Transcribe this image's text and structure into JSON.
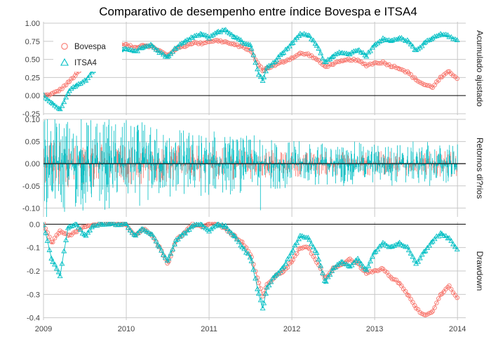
{
  "chart_data": {
    "type": "line",
    "title": "Comparativo de desempenho entre índice Bovespa e ITSA4",
    "x_ticks": [
      "2009",
      "2010",
      "2011",
      "2012",
      "2013",
      "2014"
    ],
    "x_range": [
      2009.0,
      2014.1
    ],
    "legend": {
      "placement": "top-left",
      "entries": [
        "Bovespa",
        "ITSA4"
      ]
    },
    "colors": {
      "Bovespa": "#F8766D",
      "ITSA4": "#00BFC4",
      "grid": "#c8c8c8"
    },
    "panels": [
      {
        "strip": "Acumulado ajustado",
        "ylim": [
          -0.27,
          1.02
        ],
        "y_ticks": [
          "1.00",
          "0.75",
          "0.50",
          "0.25",
          "0.00",
          "-0.25"
        ],
        "y_tick_values": [
          1.0,
          0.75,
          0.5,
          0.25,
          0.0,
          -0.25
        ],
        "series": [
          {
            "name": "Bovespa",
            "x": [
              2009.0,
              2009.1,
              2009.2,
              2009.3,
              2009.4,
              2009.5,
              2009.6,
              2009.7,
              2009.8,
              2009.9,
              2010.0,
              2010.1,
              2010.2,
              2010.3,
              2010.4,
              2010.5,
              2010.6,
              2010.7,
              2010.8,
              2010.9,
              2011.0,
              2011.1,
              2011.2,
              2011.3,
              2011.4,
              2011.5,
              2011.6,
              2011.65,
              2011.7,
              2011.8,
              2011.9,
              2012.0,
              2012.1,
              2012.2,
              2012.3,
              2012.4,
              2012.5,
              2012.6,
              2012.7,
              2012.8,
              2012.9,
              2013.0,
              2013.1,
              2013.2,
              2013.3,
              2013.4,
              2013.5,
              2013.6,
              2013.7,
              2013.8,
              2013.9,
              2014.0
            ],
            "y": [
              0.0,
              0.02,
              0.08,
              0.18,
              0.3,
              0.42,
              0.52,
              0.6,
              0.66,
              0.7,
              0.7,
              0.66,
              0.7,
              0.68,
              0.62,
              0.55,
              0.65,
              0.68,
              0.73,
              0.72,
              0.75,
              0.76,
              0.74,
              0.7,
              0.68,
              0.62,
              0.42,
              0.35,
              0.38,
              0.42,
              0.47,
              0.52,
              0.58,
              0.57,
              0.5,
              0.4,
              0.44,
              0.47,
              0.5,
              0.48,
              0.42,
              0.45,
              0.46,
              0.41,
              0.38,
              0.32,
              0.22,
              0.15,
              0.12,
              0.25,
              0.33,
              0.24
            ]
          },
          {
            "name": "ITSA4",
            "x": [
              2009.0,
              2009.1,
              2009.2,
              2009.3,
              2009.4,
              2009.5,
              2009.6,
              2009.7,
              2009.8,
              2009.9,
              2010.0,
              2010.1,
              2010.2,
              2010.3,
              2010.4,
              2010.5,
              2010.6,
              2010.7,
              2010.8,
              2010.9,
              2011.0,
              2011.1,
              2011.2,
              2011.3,
              2011.4,
              2011.5,
              2011.6,
              2011.65,
              2011.7,
              2011.8,
              2011.9,
              2012.0,
              2012.1,
              2012.2,
              2012.3,
              2012.4,
              2012.5,
              2012.6,
              2012.7,
              2012.8,
              2012.9,
              2013.0,
              2013.1,
              2013.2,
              2013.3,
              2013.4,
              2013.5,
              2013.6,
              2013.7,
              2013.8,
              2013.9,
              2014.0
            ],
            "y": [
              0.0,
              -0.1,
              -0.2,
              0.05,
              0.15,
              0.2,
              0.35,
              0.45,
              0.55,
              0.6,
              0.65,
              0.6,
              0.67,
              0.7,
              0.6,
              0.52,
              0.66,
              0.74,
              0.8,
              0.85,
              0.8,
              0.88,
              0.9,
              0.82,
              0.74,
              0.7,
              0.3,
              0.2,
              0.38,
              0.48,
              0.6,
              0.72,
              0.85,
              0.83,
              0.7,
              0.45,
              0.55,
              0.6,
              0.58,
              0.63,
              0.55,
              0.7,
              0.78,
              0.75,
              0.8,
              0.75,
              0.62,
              0.72,
              0.8,
              0.85,
              0.82,
              0.75
            ]
          }
        ]
      },
      {
        "strip": "Retornos di?rios",
        "ylim": [
          -0.12,
          0.1
        ],
        "y_ticks": [
          "0.10",
          "0.05",
          "0.00",
          "-0.05",
          "-0.10"
        ],
        "y_tick_values": [
          0.1,
          0.05,
          0.0,
          -0.05,
          -0.1
        ],
        "series": [
          {
            "name": "Bovespa",
            "x_range": [
              2009.0,
              2014.0
            ],
            "amplitude_early": 0.04,
            "amplitude_late": 0.02
          },
          {
            "name": "ITSA4",
            "x_range": [
              2009.0,
              2014.0
            ],
            "amplitude_early": 0.085,
            "amplitude_late": 0.035,
            "extreme": {
              "x": 2011.62,
              "y": -0.105
            }
          }
        ]
      },
      {
        "strip": "Drawdown",
        "ylim": [
          -0.41,
          0.01
        ],
        "y_ticks": [
          "0.0",
          "-0.1",
          "-0.2",
          "-0.3",
          "-0.4"
        ],
        "y_tick_values": [
          0.0,
          -0.1,
          -0.2,
          -0.3,
          -0.4
        ],
        "series": [
          {
            "name": "Bovespa",
            "x": [
              2009.0,
              2009.1,
              2009.2,
              2009.3,
              2009.4,
              2009.5,
              2009.6,
              2009.7,
              2009.8,
              2009.9,
              2010.0,
              2010.1,
              2010.2,
              2010.3,
              2010.4,
              2010.5,
              2010.6,
              2010.7,
              2010.8,
              2010.9,
              2011.0,
              2011.1,
              2011.2,
              2011.3,
              2011.4,
              2011.5,
              2011.6,
              2011.65,
              2011.7,
              2011.8,
              2011.9,
              2012.0,
              2012.1,
              2012.2,
              2012.3,
              2012.4,
              2012.5,
              2012.6,
              2012.7,
              2012.8,
              2012.9,
              2013.0,
              2013.1,
              2013.2,
              2013.3,
              2013.4,
              2013.5,
              2013.6,
              2013.7,
              2013.8,
              2013.9,
              2014.0
            ],
            "y": [
              0.0,
              -0.08,
              -0.03,
              -0.05,
              -0.03,
              -0.01,
              0.0,
              0.0,
              0.0,
              0.0,
              0.0,
              -0.05,
              -0.02,
              -0.04,
              -0.1,
              -0.17,
              -0.07,
              -0.04,
              0.0,
              -0.01,
              0.0,
              0.0,
              -0.02,
              -0.05,
              -0.08,
              -0.13,
              -0.25,
              -0.31,
              -0.26,
              -0.22,
              -0.2,
              -0.16,
              -0.1,
              -0.1,
              -0.16,
              -0.23,
              -0.19,
              -0.17,
              -0.15,
              -0.17,
              -0.21,
              -0.2,
              -0.19,
              -0.23,
              -0.25,
              -0.3,
              -0.36,
              -0.39,
              -0.37,
              -0.3,
              -0.26,
              -0.32
            ]
          },
          {
            "name": "ITSA4",
            "x": [
              2009.0,
              2009.1,
              2009.2,
              2009.3,
              2009.4,
              2009.5,
              2009.6,
              2009.7,
              2009.8,
              2009.9,
              2010.0,
              2010.1,
              2010.2,
              2010.3,
              2010.4,
              2010.5,
              2010.6,
              2010.7,
              2010.8,
              2010.9,
              2011.0,
              2011.1,
              2011.2,
              2011.3,
              2011.4,
              2011.5,
              2011.6,
              2011.65,
              2011.7,
              2011.8,
              2011.9,
              2012.0,
              2012.1,
              2012.2,
              2012.3,
              2012.4,
              2012.5,
              2012.6,
              2012.7,
              2012.8,
              2012.9,
              2013.0,
              2013.1,
              2013.2,
              2013.3,
              2013.4,
              2013.5,
              2013.6,
              2013.7,
              2013.8,
              2013.9,
              2014.0
            ],
            "y": [
              0.0,
              -0.15,
              -0.22,
              -0.01,
              0.0,
              -0.05,
              -0.01,
              0.0,
              0.0,
              0.0,
              0.0,
              -0.05,
              -0.02,
              -0.04,
              -0.1,
              -0.16,
              -0.07,
              -0.04,
              -0.01,
              0.0,
              -0.03,
              0.0,
              -0.01,
              -0.05,
              -0.1,
              -0.14,
              -0.3,
              -0.36,
              -0.27,
              -0.22,
              -0.18,
              -0.12,
              -0.05,
              -0.06,
              -0.12,
              -0.25,
              -0.19,
              -0.16,
              -0.18,
              -0.15,
              -0.2,
              -0.12,
              -0.08,
              -0.1,
              -0.08,
              -0.1,
              -0.17,
              -0.12,
              -0.07,
              -0.04,
              -0.06,
              -0.11
            ]
          }
        ]
      }
    ]
  }
}
